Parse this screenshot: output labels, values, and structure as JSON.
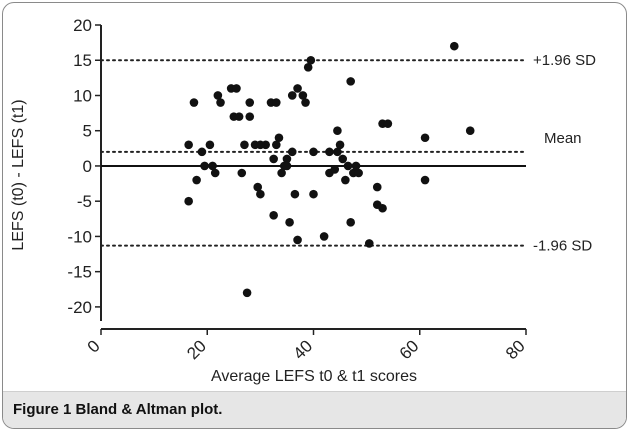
{
  "caption": {
    "label": "Figure 1",
    "text": " Bland & Altman plot."
  },
  "chart_data": {
    "type": "scatter",
    "xlabel": "Average LEFS t0 & t1 scores",
    "ylabel": "LEFS (t0) - LEFS (t1)",
    "xlim": [
      0,
      80
    ],
    "ylim": [
      -22,
      20
    ],
    "xticks": [
      0,
      20,
      40,
      60,
      80
    ],
    "yticks": [
      20,
      15,
      10,
      5,
      0,
      -5,
      -10,
      -15,
      -20
    ],
    "grid": false,
    "reference_lines": [
      {
        "label": "+1.96 SD",
        "y": 15,
        "style": "dotted"
      },
      {
        "label": "Mean",
        "y": 2,
        "style": "dotted"
      },
      {
        "label": "-1.96 SD",
        "y": -11.3,
        "style": "dotted"
      }
    ],
    "zero_line": 0,
    "points": [
      [
        16.5,
        3
      ],
      [
        16.5,
        -5
      ],
      [
        17.5,
        9
      ],
      [
        18,
        -2
      ],
      [
        19,
        2
      ],
      [
        19.5,
        0
      ],
      [
        20.5,
        3
      ],
      [
        21,
        0
      ],
      [
        21.5,
        -1
      ],
      [
        22,
        10
      ],
      [
        22.5,
        9
      ],
      [
        24.5,
        11
      ],
      [
        25,
        7
      ],
      [
        26,
        7
      ],
      [
        26.5,
        -1
      ],
      [
        27,
        3
      ],
      [
        27.5,
        -18
      ],
      [
        28,
        7
      ],
      [
        28,
        9
      ],
      [
        29,
        3
      ],
      [
        29.5,
        -3
      ],
      [
        30,
        -4
      ],
      [
        31,
        3
      ],
      [
        32,
        9
      ],
      [
        32.5,
        1
      ],
      [
        32.5,
        -7
      ],
      [
        33,
        9
      ],
      [
        33,
        3
      ],
      [
        33.5,
        4
      ],
      [
        34,
        -1
      ],
      [
        34.5,
        0
      ],
      [
        35,
        1
      ],
      [
        35.5,
        -8
      ],
      [
        36,
        10
      ],
      [
        36,
        2
      ],
      [
        36.5,
        -4
      ],
      [
        37,
        -10.5
      ],
      [
        37,
        11
      ],
      [
        38,
        10
      ],
      [
        39,
        14
      ],
      [
        39.5,
        15
      ],
      [
        40,
        2
      ],
      [
        40,
        -4
      ],
      [
        42,
        -10
      ],
      [
        43,
        2
      ],
      [
        43,
        -1
      ],
      [
        44.5,
        2
      ],
      [
        44.5,
        5
      ],
      [
        45,
        3
      ],
      [
        45.5,
        1
      ],
      [
        46,
        -2
      ],
      [
        46.5,
        0
      ],
      [
        47,
        12
      ],
      [
        47,
        -8
      ],
      [
        47.5,
        -1
      ],
      [
        48,
        0
      ],
      [
        50.5,
        -11
      ],
      [
        52,
        -3
      ],
      [
        53,
        6
      ],
      [
        53,
        -6
      ],
      [
        54,
        6
      ],
      [
        61,
        4
      ],
      [
        61,
        -2
      ],
      [
        66.5,
        17
      ],
      [
        69.5,
        5
      ],
      [
        52,
        -5.5
      ],
      [
        48.5,
        -1
      ],
      [
        35,
        0
      ],
      [
        30,
        3
      ],
      [
        38.5,
        9
      ],
      [
        44,
        -0.5
      ],
      [
        25.5,
        11
      ]
    ]
  }
}
